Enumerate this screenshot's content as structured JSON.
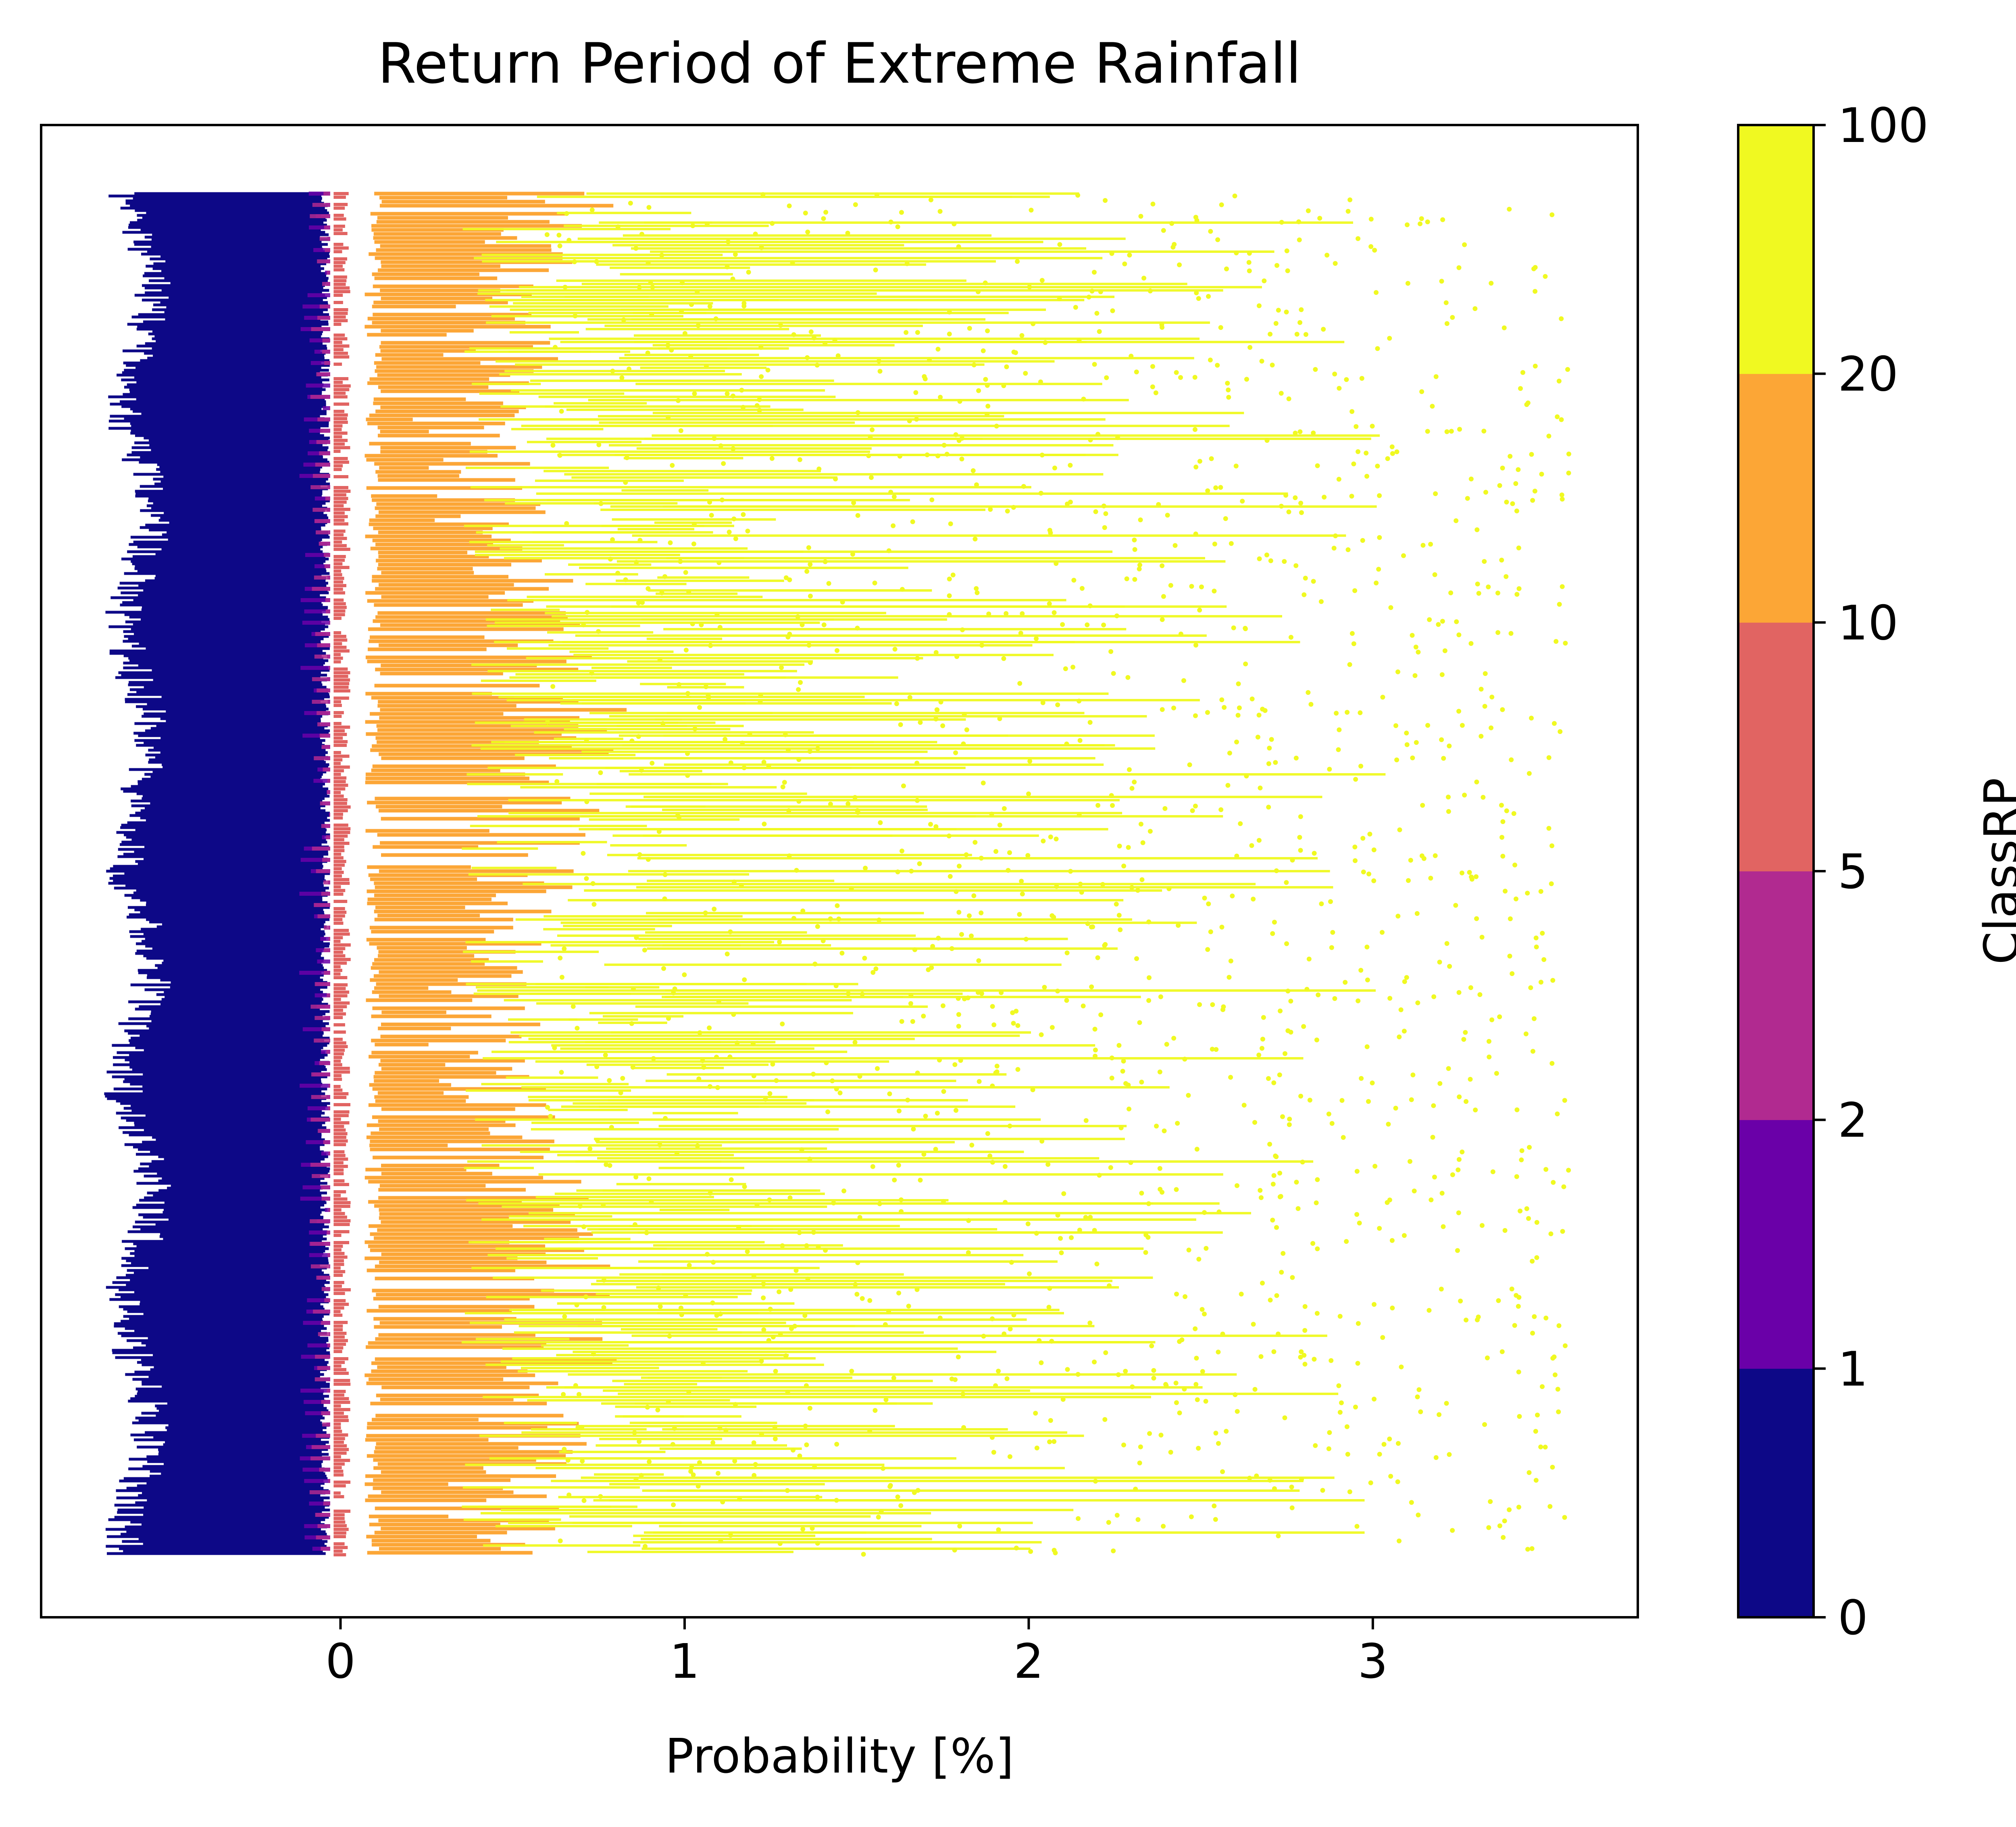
{
  "chart_data": {
    "type": "scatter",
    "title": "Return Period of Extreme Rainfall",
    "xlabel": "Probability [%]",
    "ylabel": "",
    "xlim": [
      -0.87,
      3.77
    ],
    "x_ticks": [
      0,
      1,
      2,
      3
    ],
    "y_ticks_shown": false,
    "grid": false,
    "colorbar": {
      "label": "ClassRP",
      "tick_labels": [
        "0",
        "1",
        "2",
        "5",
        "10",
        "20",
        "100"
      ],
      "band_colors": [
        "#0d0887",
        "#6a00a8",
        "#b12a90",
        "#e16462",
        "#fca636",
        "#f0f921"
      ]
    },
    "series": [
      {
        "class_range": "0-1",
        "color": "#0d0887",
        "x_range": [
          -0.65,
          -0.03
        ],
        "density": "very high"
      },
      {
        "class_range": "1-2",
        "color": "#6a00a8",
        "x_range": [
          -0.12,
          -0.03
        ],
        "density": "low"
      },
      {
        "class_range": "2-5",
        "color": "#b12a90",
        "x_range": [
          -0.09,
          -0.03
        ],
        "density": "low"
      },
      {
        "class_range": "5-10",
        "color": "#e16462",
        "x_range": [
          -0.02,
          0.04
        ],
        "density": "high"
      },
      {
        "class_range": "10-20",
        "color": "#fca636",
        "x_range": [
          0.07,
          0.9
        ],
        "density": "high"
      },
      {
        "class_range": "20-100",
        "color": "#f0f921",
        "x_range": [
          0.3,
          3.57
        ],
        "density": "medium"
      }
    ]
  }
}
